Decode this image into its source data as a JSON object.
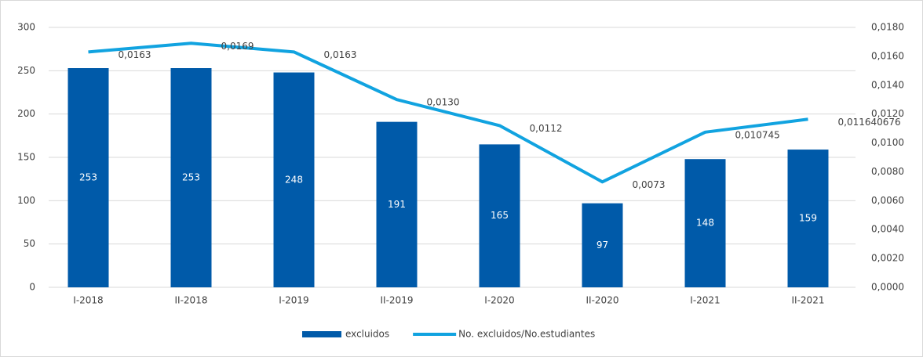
{
  "chart_data": {
    "type": "bar-line",
    "categories": [
      "I-2018",
      "II-2018",
      "I-2019",
      "II-2019",
      "I-2020",
      "II-2020",
      "I-2021",
      "II-2021"
    ],
    "series": [
      {
        "name": "excluidos",
        "type": "bar",
        "color": "#005aa9",
        "values": [
          253,
          253,
          248,
          191,
          165,
          97,
          148,
          159
        ]
      },
      {
        "name": "No. excluidos/No.estudiantes",
        "type": "line",
        "axis": "y2",
        "color": "#11a3e0",
        "values": [
          0.0163,
          0.0169,
          0.0163,
          0.013,
          0.0112,
          0.0073,
          0.010745,
          0.011640676
        ],
        "value_labels": [
          "0,0163",
          "0,0169",
          "0,0163",
          "0,0130",
          "0,0112",
          "0,0073",
          "0,010745",
          "0,011640676"
        ]
      }
    ],
    "ylim": [
      0,
      300
    ],
    "yticks": [
      0,
      50,
      100,
      150,
      200,
      250,
      300
    ],
    "y2lim": [
      0,
      0.018
    ],
    "y2ticks": [
      {
        "value": 0,
        "label": "0,0000"
      },
      {
        "value": 0.002,
        "label": "0,0020"
      },
      {
        "value": 0.004,
        "label": "0,0040"
      },
      {
        "value": 0.006,
        "label": "0,0060"
      },
      {
        "value": 0.008,
        "label": "0,0080"
      },
      {
        "value": 0.01,
        "label": "0,0100"
      },
      {
        "value": 0.012,
        "label": "0,0120"
      },
      {
        "value": 0.014,
        "label": "0,0140"
      },
      {
        "value": 0.016,
        "label": "0,0160"
      },
      {
        "value": 0.018,
        "label": "0,0180"
      }
    ],
    "grid": true,
    "legend": "bottom"
  }
}
